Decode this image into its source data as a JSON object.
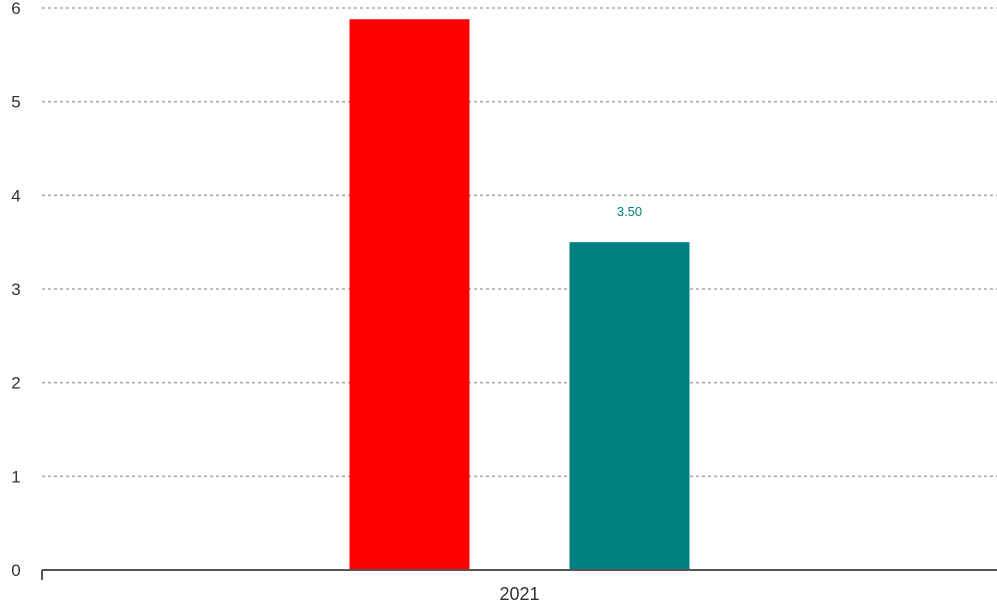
{
  "chart_data": {
    "type": "bar",
    "categories": [
      "2021"
    ],
    "series": [
      {
        "values": [
          5.88
        ],
        "color": "#ff0000",
        "data_label": ""
      },
      {
        "values": [
          3.5
        ],
        "color": "#008080",
        "data_label": "3.50"
      }
    ],
    "ylim": [
      0,
      6
    ],
    "yticks": [
      "0",
      "1",
      "2",
      "3",
      "4",
      "5",
      "6"
    ],
    "grid": true,
    "legend": "none"
  }
}
